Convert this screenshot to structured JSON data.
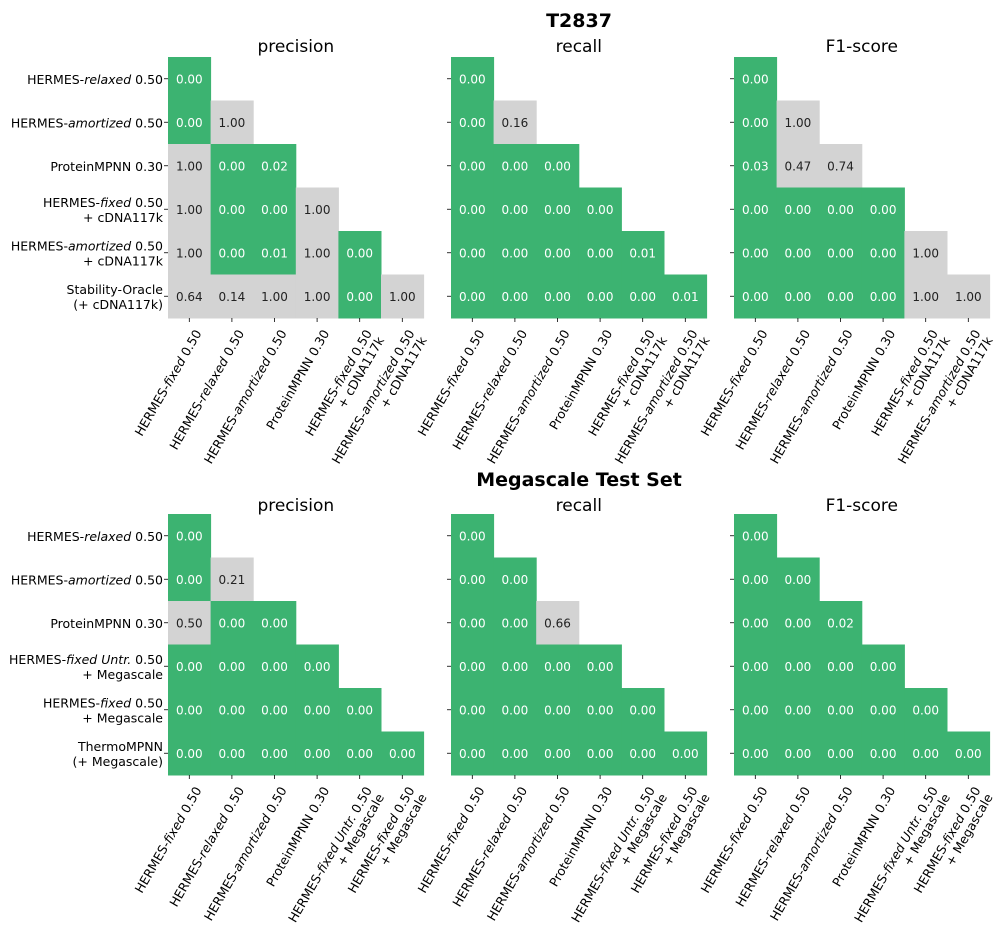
{
  "chart_data": [
    {
      "type": "heatmap",
      "title": "T2837",
      "row_labels": [
        [
          {
            "t": "HERMES-"
          },
          {
            "t": "relaxed",
            "i": true
          },
          {
            "t": " 0.50"
          }
        ],
        [
          {
            "t": "HERMES-"
          },
          {
            "t": "amortized",
            "i": true
          },
          {
            "t": " 0.50"
          }
        ],
        [
          {
            "t": "ProteinMPNN 0.30"
          }
        ],
        [
          {
            "t": "HERMES-"
          },
          {
            "t": "fixed",
            "i": true
          },
          {
            "t": " 0.50"
          },
          {
            "br": true
          },
          {
            "t": "+ cDNA117k"
          }
        ],
        [
          {
            "t": "HERMES-"
          },
          {
            "t": "amortized",
            "i": true
          },
          {
            "t": " 0.50"
          },
          {
            "br": true
          },
          {
            "t": "+ cDNA117k"
          }
        ],
        [
          {
            "t": "Stability-Oracle"
          },
          {
            "br": true
          },
          {
            "t": "(+ cDNA117k)"
          }
        ]
      ],
      "col_labels": [
        [
          {
            "t": "HERMES-"
          },
          {
            "t": "fixed",
            "i": true
          },
          {
            "t": " 0.50"
          }
        ],
        [
          {
            "t": "HERMES-"
          },
          {
            "t": "relaxed",
            "i": true
          },
          {
            "t": " 0.50"
          }
        ],
        [
          {
            "t": "HERMES-"
          },
          {
            "t": "amortized",
            "i": true
          },
          {
            "t": " 0.50"
          }
        ],
        [
          {
            "t": "ProteinMPNN 0.30"
          }
        ],
        [
          {
            "t": "HERMES-"
          },
          {
            "t": "fixed",
            "i": true
          },
          {
            "t": " 0.50"
          },
          {
            "br": true
          },
          {
            "t": "+ cDNA117k"
          }
        ],
        [
          {
            "t": "HERMES-"
          },
          {
            "t": "amortized",
            "i": true
          },
          {
            "t": " 0.50"
          },
          {
            "br": true
          },
          {
            "t": "+ cDNA117k"
          }
        ]
      ],
      "panels": [
        {
          "title": "precision",
          "values": [
            [
              "0.00"
            ],
            [
              "0.00",
              "1.00"
            ],
            [
              "1.00",
              "0.00",
              "0.02"
            ],
            [
              "1.00",
              "0.00",
              "0.00",
              "1.00"
            ],
            [
              "1.00",
              "0.00",
              "0.01",
              "1.00",
              "0.00"
            ],
            [
              "0.64",
              "0.14",
              "1.00",
              "1.00",
              "0.00",
              "1.00"
            ]
          ]
        },
        {
          "title": "recall",
          "values": [
            [
              "0.00"
            ],
            [
              "0.00",
              "0.16"
            ],
            [
              "0.00",
              "0.00",
              "0.00"
            ],
            [
              "0.00",
              "0.00",
              "0.00",
              "0.00"
            ],
            [
              "0.00",
              "0.00",
              "0.00",
              "0.00",
              "0.01"
            ],
            [
              "0.00",
              "0.00",
              "0.00",
              "0.00",
              "0.00",
              "0.01"
            ]
          ]
        },
        {
          "title": "F1-score",
          "values": [
            [
              "0.00"
            ],
            [
              "0.00",
              "1.00"
            ],
            [
              "0.03",
              "0.47",
              "0.74"
            ],
            [
              "0.00",
              "0.00",
              "0.00",
              "0.00"
            ],
            [
              "0.00",
              "0.00",
              "0.00",
              "0.00",
              "1.00"
            ],
            [
              "0.00",
              "0.00",
              "0.00",
              "0.00",
              "1.00",
              "1.00"
            ]
          ]
        }
      ]
    },
    {
      "type": "heatmap",
      "title": "Megascale Test Set",
      "row_labels": [
        [
          {
            "t": "HERMES-"
          },
          {
            "t": "relaxed",
            "i": true
          },
          {
            "t": " 0.50"
          }
        ],
        [
          {
            "t": "HERMES-"
          },
          {
            "t": "amortized",
            "i": true
          },
          {
            "t": " 0.50"
          }
        ],
        [
          {
            "t": "ProteinMPNN 0.30"
          }
        ],
        [
          {
            "t": "HERMES-"
          },
          {
            "t": "fixed",
            "i": true
          },
          {
            "t": " "
          },
          {
            "t": "Untr.",
            "i": true
          },
          {
            "t": " 0.50"
          },
          {
            "br": true
          },
          {
            "t": "+ Megascale"
          }
        ],
        [
          {
            "t": "HERMES-"
          },
          {
            "t": "fixed",
            "i": true
          },
          {
            "t": " 0.50"
          },
          {
            "br": true
          },
          {
            "t": "+ Megascale"
          }
        ],
        [
          {
            "t": "ThermoMPNN"
          },
          {
            "br": true
          },
          {
            "t": "(+ Megascale)"
          }
        ]
      ],
      "col_labels": [
        [
          {
            "t": "HERMES-"
          },
          {
            "t": "fixed",
            "i": true
          },
          {
            "t": " 0.50"
          }
        ],
        [
          {
            "t": "HERMES-"
          },
          {
            "t": "relaxed",
            "i": true
          },
          {
            "t": " 0.50"
          }
        ],
        [
          {
            "t": "HERMES-"
          },
          {
            "t": "amortized",
            "i": true
          },
          {
            "t": " 0.50"
          }
        ],
        [
          {
            "t": "ProteinMPNN 0.30"
          }
        ],
        [
          {
            "t": "HERMES-"
          },
          {
            "t": "fixed",
            "i": true
          },
          {
            "t": " "
          },
          {
            "t": "Untr.",
            "i": true
          },
          {
            "t": " 0.50"
          },
          {
            "br": true
          },
          {
            "t": "+ Megascale"
          }
        ],
        [
          {
            "t": "HERMES-"
          },
          {
            "t": "fixed",
            "i": true
          },
          {
            "t": " 0.50"
          },
          {
            "br": true
          },
          {
            "t": "+ Megascale"
          }
        ]
      ],
      "panels": [
        {
          "title": "precision",
          "values": [
            [
              "0.00"
            ],
            [
              "0.00",
              "0.21"
            ],
            [
              "0.50",
              "0.00",
              "0.00"
            ],
            [
              "0.00",
              "0.00",
              "0.00",
              "0.00"
            ],
            [
              "0.00",
              "0.00",
              "0.00",
              "0.00",
              "0.00"
            ],
            [
              "0.00",
              "0.00",
              "0.00",
              "0.00",
              "0.00",
              "0.00"
            ]
          ]
        },
        {
          "title": "recall",
          "values": [
            [
              "0.00"
            ],
            [
              "0.00",
              "0.00"
            ],
            [
              "0.00",
              "0.00",
              "0.66"
            ],
            [
              "0.00",
              "0.00",
              "0.00",
              "0.00"
            ],
            [
              "0.00",
              "0.00",
              "0.00",
              "0.00",
              "0.00"
            ],
            [
              "0.00",
              "0.00",
              "0.00",
              "0.00",
              "0.00",
              "0.00"
            ]
          ]
        },
        {
          "title": "F1-score",
          "values": [
            [
              "0.00"
            ],
            [
              "0.00",
              "0.00"
            ],
            [
              "0.00",
              "0.00",
              "0.02"
            ],
            [
              "0.00",
              "0.00",
              "0.00",
              "0.00"
            ],
            [
              "0.00",
              "0.00",
              "0.00",
              "0.00",
              "0.00"
            ],
            [
              "0.00",
              "0.00",
              "0.00",
              "0.00",
              "0.00",
              "0.00"
            ]
          ]
        }
      ]
    }
  ],
  "colors": {
    "low": "#3cb371",
    "mid": "#d3d3d3",
    "high": "#ffd700",
    "text_on_low": "#ffffff",
    "text_on_other": "#222222"
  },
  "thresholds": {
    "low_below": 0.05,
    "high_below": 0.1
  }
}
